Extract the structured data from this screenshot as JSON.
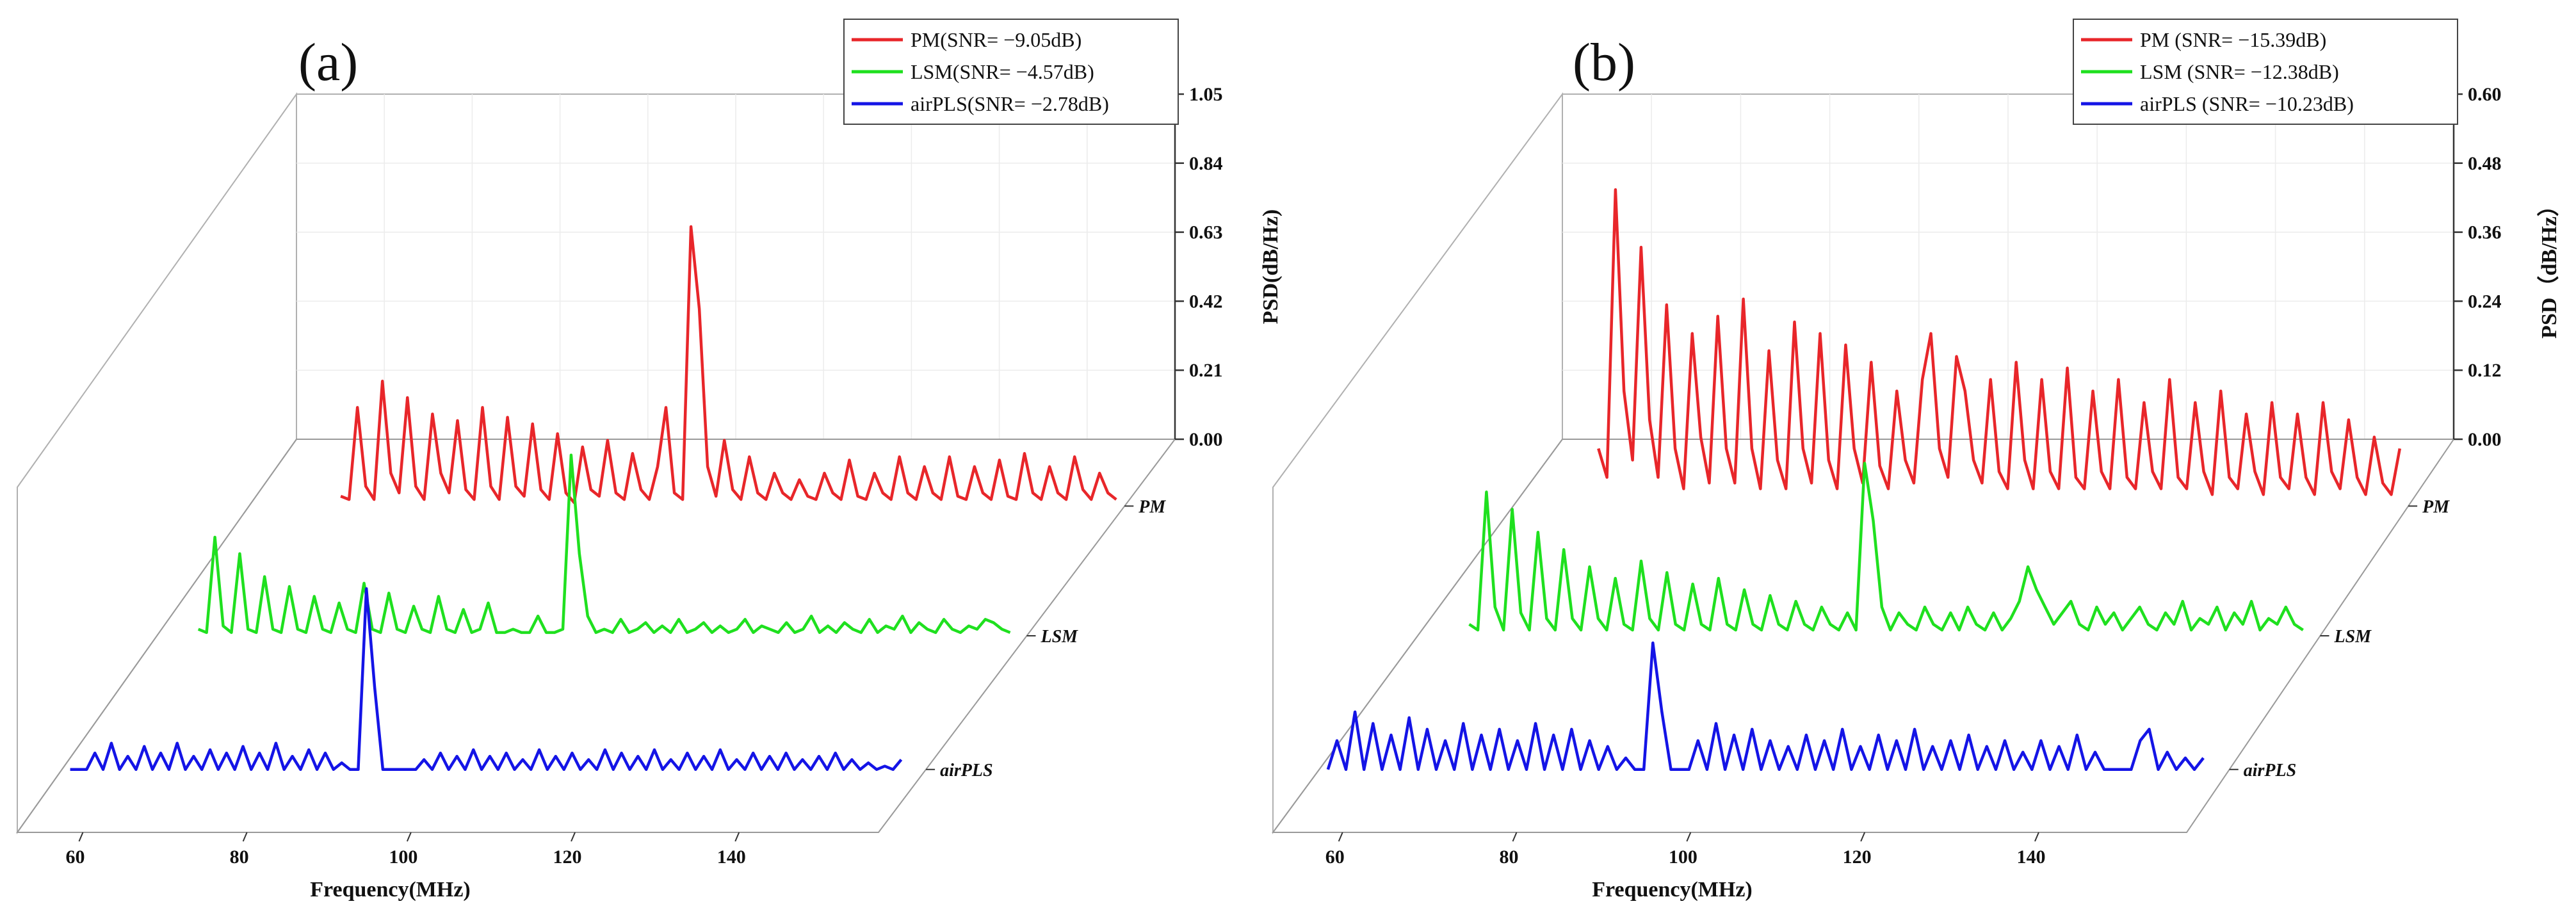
{
  "chart_data": [
    {
      "type": "line",
      "panel": "(a)",
      "xlabel": "Frequency(MHz)",
      "ylabel": "PSD(dB/Hz)",
      "x_ticks": [
        "60",
        "80",
        "100",
        "120",
        "140"
      ],
      "xlim": [
        52,
        157
      ],
      "ylim": [
        0,
        1.05
      ],
      "z_ticks": [
        "0.00",
        "0.21",
        "0.42",
        "0.63",
        "0.84",
        "1.05"
      ],
      "series_order": [
        "airPLS",
        "LSM",
        "PM"
      ],
      "series": [
        {
          "name": "PM",
          "tag": "PM",
          "legend": "PM(SNR= −9.05dB)",
          "color": "#e8262a",
          "x_start": 63,
          "x_end": 156,
          "values": [
            0.03,
            0.02,
            0.3,
            0.06,
            0.02,
            0.38,
            0.1,
            0.04,
            0.33,
            0.06,
            0.02,
            0.28,
            0.1,
            0.04,
            0.26,
            0.05,
            0.02,
            0.3,
            0.06,
            0.02,
            0.27,
            0.06,
            0.03,
            0.25,
            0.05,
            0.02,
            0.22,
            0.04,
            0.01,
            0.18,
            0.05,
            0.03,
            0.2,
            0.04,
            0.02,
            0.16,
            0.05,
            0.02,
            0.12,
            0.3,
            0.04,
            0.02,
            0.85,
            0.6,
            0.12,
            0.03,
            0.2,
            0.05,
            0.02,
            0.15,
            0.04,
            0.02,
            0.1,
            0.04,
            0.02,
            0.08,
            0.03,
            0.02,
            0.1,
            0.04,
            0.02,
            0.14,
            0.03,
            0.02,
            0.1,
            0.04,
            0.02,
            0.15,
            0.04,
            0.02,
            0.12,
            0.04,
            0.02,
            0.15,
            0.03,
            0.02,
            0.12,
            0.04,
            0.02,
            0.14,
            0.03,
            0.02,
            0.16,
            0.04,
            0.02,
            0.12,
            0.04,
            0.02,
            0.15,
            0.05,
            0.02,
            0.1,
            0.04,
            0.02
          ]
        },
        {
          "name": "LSM",
          "tag": "LSM",
          "legend": "LSM(SNR= −4.57dB)",
          "color": "#1fe01f",
          "x_start": 57,
          "x_end": 155,
          "values": [
            0.02,
            0.01,
            0.3,
            0.03,
            0.01,
            0.25,
            0.02,
            0.01,
            0.18,
            0.02,
            0.01,
            0.15,
            0.02,
            0.01,
            0.12,
            0.02,
            0.01,
            0.1,
            0.02,
            0.01,
            0.16,
            0.02,
            0.01,
            0.13,
            0.02,
            0.01,
            0.09,
            0.02,
            0.01,
            0.12,
            0.02,
            0.01,
            0.08,
            0.01,
            0.02,
            0.1,
            0.01,
            0.01,
            0.02,
            0.01,
            0.01,
            0.06,
            0.01,
            0.01,
            0.02,
            0.55,
            0.25,
            0.06,
            0.01,
            0.02,
            0.01,
            0.05,
            0.01,
            0.02,
            0.04,
            0.01,
            0.03,
            0.01,
            0.05,
            0.01,
            0.02,
            0.04,
            0.01,
            0.03,
            0.01,
            0.02,
            0.05,
            0.01,
            0.03,
            0.02,
            0.01,
            0.04,
            0.01,
            0.02,
            0.06,
            0.01,
            0.03,
            0.01,
            0.04,
            0.02,
            0.01,
            0.05,
            0.01,
            0.03,
            0.02,
            0.06,
            0.01,
            0.04,
            0.02,
            0.01,
            0.05,
            0.02,
            0.01,
            0.03,
            0.02,
            0.05,
            0.04,
            0.02,
            0.01
          ]
        },
        {
          "name": "airPLS",
          "tag": "airPLS",
          "legend": "airPLS(SNR= −2.78dB)",
          "color": "#1414e6",
          "x_start": 53,
          "x_end": 154,
          "values": [
            0.0,
            0.0,
            0.0,
            0.05,
            0.0,
            0.08,
            0.0,
            0.04,
            0.0,
            0.07,
            0.0,
            0.05,
            0.0,
            0.08,
            0.0,
            0.04,
            0.0,
            0.06,
            0.0,
            0.05,
            0.0,
            0.07,
            0.0,
            0.05,
            0.0,
            0.08,
            0.0,
            0.04,
            0.0,
            0.06,
            0.0,
            0.05,
            0.0,
            0.02,
            0.0,
            0.0,
            0.55,
            0.25,
            0.0,
            0.0,
            0.0,
            0.0,
            0.0,
            0.03,
            0.0,
            0.05,
            0.0,
            0.04,
            0.0,
            0.06,
            0.0,
            0.04,
            0.0,
            0.05,
            0.0,
            0.03,
            0.0,
            0.06,
            0.0,
            0.04,
            0.0,
            0.05,
            0.0,
            0.03,
            0.0,
            0.06,
            0.0,
            0.05,
            0.0,
            0.04,
            0.0,
            0.06,
            0.0,
            0.03,
            0.0,
            0.05,
            0.0,
            0.04,
            0.0,
            0.06,
            0.0,
            0.03,
            0.0,
            0.05,
            0.0,
            0.04,
            0.0,
            0.05,
            0.0,
            0.03,
            0.0,
            0.04,
            0.0,
            0.05,
            0.0,
            0.03,
            0.0,
            0.02,
            0.0,
            0.01,
            0.0,
            0.03
          ]
        }
      ]
    },
    {
      "type": "line",
      "panel": "(b)",
      "xlabel": "Frequency(MHz)",
      "ylabel": "PSD（dB/Hz）",
      "x_ticks": [
        "60",
        "80",
        "100",
        "120",
        "140"
      ],
      "xlim": [
        52,
        157
      ],
      "ylim": [
        0,
        0.6
      ],
      "z_ticks": [
        "0.00",
        "0.12",
        "0.24",
        "0.36",
        "0.48",
        "0.60"
      ],
      "series_order": [
        "airPLS",
        "LSM",
        "PM"
      ],
      "series": [
        {
          "name": "PM",
          "tag": "PM",
          "legend": "PM  (SNR= −15.39dB)",
          "color": "#e8262a",
          "x_start": 62,
          "x_end": 156,
          "values": [
            0.1,
            0.05,
            0.55,
            0.2,
            0.08,
            0.45,
            0.15,
            0.05,
            0.35,
            0.1,
            0.03,
            0.3,
            0.12,
            0.04,
            0.33,
            0.1,
            0.04,
            0.36,
            0.1,
            0.03,
            0.27,
            0.08,
            0.03,
            0.32,
            0.1,
            0.04,
            0.3,
            0.08,
            0.03,
            0.28,
            0.1,
            0.04,
            0.25,
            0.07,
            0.03,
            0.2,
            0.08,
            0.04,
            0.22,
            0.3,
            0.1,
            0.05,
            0.26,
            0.2,
            0.08,
            0.04,
            0.22,
            0.06,
            0.03,
            0.25,
            0.08,
            0.03,
            0.22,
            0.06,
            0.03,
            0.24,
            0.05,
            0.03,
            0.2,
            0.06,
            0.03,
            0.22,
            0.05,
            0.03,
            0.18,
            0.06,
            0.03,
            0.22,
            0.05,
            0.03,
            0.18,
            0.06,
            0.02,
            0.2,
            0.05,
            0.03,
            0.16,
            0.06,
            0.02,
            0.18,
            0.05,
            0.03,
            0.16,
            0.05,
            0.02,
            0.18,
            0.06,
            0.03,
            0.15,
            0.05,
            0.02,
            0.12,
            0.04,
            0.02,
            0.1
          ]
        },
        {
          "name": "LSM",
          "tag": "LSM",
          "legend": "LSM (SNR= −12.38dB)",
          "color": "#1fe01f",
          "x_start": 58,
          "x_end": 155,
          "values": [
            0.02,
            0.01,
            0.25,
            0.05,
            0.01,
            0.22,
            0.04,
            0.01,
            0.18,
            0.03,
            0.01,
            0.15,
            0.03,
            0.01,
            0.12,
            0.03,
            0.01,
            0.1,
            0.02,
            0.01,
            0.13,
            0.03,
            0.01,
            0.11,
            0.02,
            0.01,
            0.09,
            0.02,
            0.01,
            0.1,
            0.02,
            0.01,
            0.08,
            0.02,
            0.01,
            0.07,
            0.02,
            0.01,
            0.06,
            0.02,
            0.01,
            0.05,
            0.02,
            0.01,
            0.04,
            0.01,
            0.3,
            0.2,
            0.05,
            0.01,
            0.04,
            0.02,
            0.01,
            0.05,
            0.02,
            0.01,
            0.04,
            0.01,
            0.05,
            0.02,
            0.01,
            0.04,
            0.01,
            0.03,
            0.06,
            0.12,
            0.08,
            0.05,
            0.02,
            0.04,
            0.06,
            0.02,
            0.01,
            0.05,
            0.02,
            0.04,
            0.01,
            0.03,
            0.05,
            0.02,
            0.01,
            0.04,
            0.02,
            0.06,
            0.01,
            0.03,
            0.02,
            0.05,
            0.01,
            0.04,
            0.02,
            0.06,
            0.01,
            0.03,
            0.02,
            0.05,
            0.02,
            0.01
          ]
        },
        {
          "name": "airPLS",
          "tag": "airPLS",
          "legend": "airPLS (SNR= −10.23dB)",
          "color": "#1414e6",
          "x_start": 53,
          "x_end": 154,
          "values": [
            0.0,
            0.05,
            0.0,
            0.1,
            0.0,
            0.08,
            0.0,
            0.06,
            0.0,
            0.09,
            0.0,
            0.07,
            0.0,
            0.05,
            0.0,
            0.08,
            0.0,
            0.06,
            0.0,
            0.07,
            0.0,
            0.05,
            0.0,
            0.08,
            0.0,
            0.06,
            0.0,
            0.07,
            0.0,
            0.05,
            0.0,
            0.04,
            0.0,
            0.02,
            0.0,
            0.0,
            0.22,
            0.1,
            0.0,
            0.0,
            0.0,
            0.05,
            0.0,
            0.08,
            0.0,
            0.06,
            0.0,
            0.07,
            0.0,
            0.05,
            0.0,
            0.04,
            0.0,
            0.06,
            0.0,
            0.05,
            0.0,
            0.07,
            0.0,
            0.04,
            0.0,
            0.06,
            0.0,
            0.05,
            0.0,
            0.07,
            0.0,
            0.04,
            0.0,
            0.05,
            0.0,
            0.06,
            0.0,
            0.04,
            0.0,
            0.05,
            0.0,
            0.03,
            0.0,
            0.05,
            0.0,
            0.04,
            0.0,
            0.06,
            0.0,
            0.03,
            0.0,
            0.0,
            0.0,
            0.0,
            0.05,
            0.07,
            0.0,
            0.03,
            0.0,
            0.02,
            0.0,
            0.02
          ]
        }
      ]
    }
  ]
}
